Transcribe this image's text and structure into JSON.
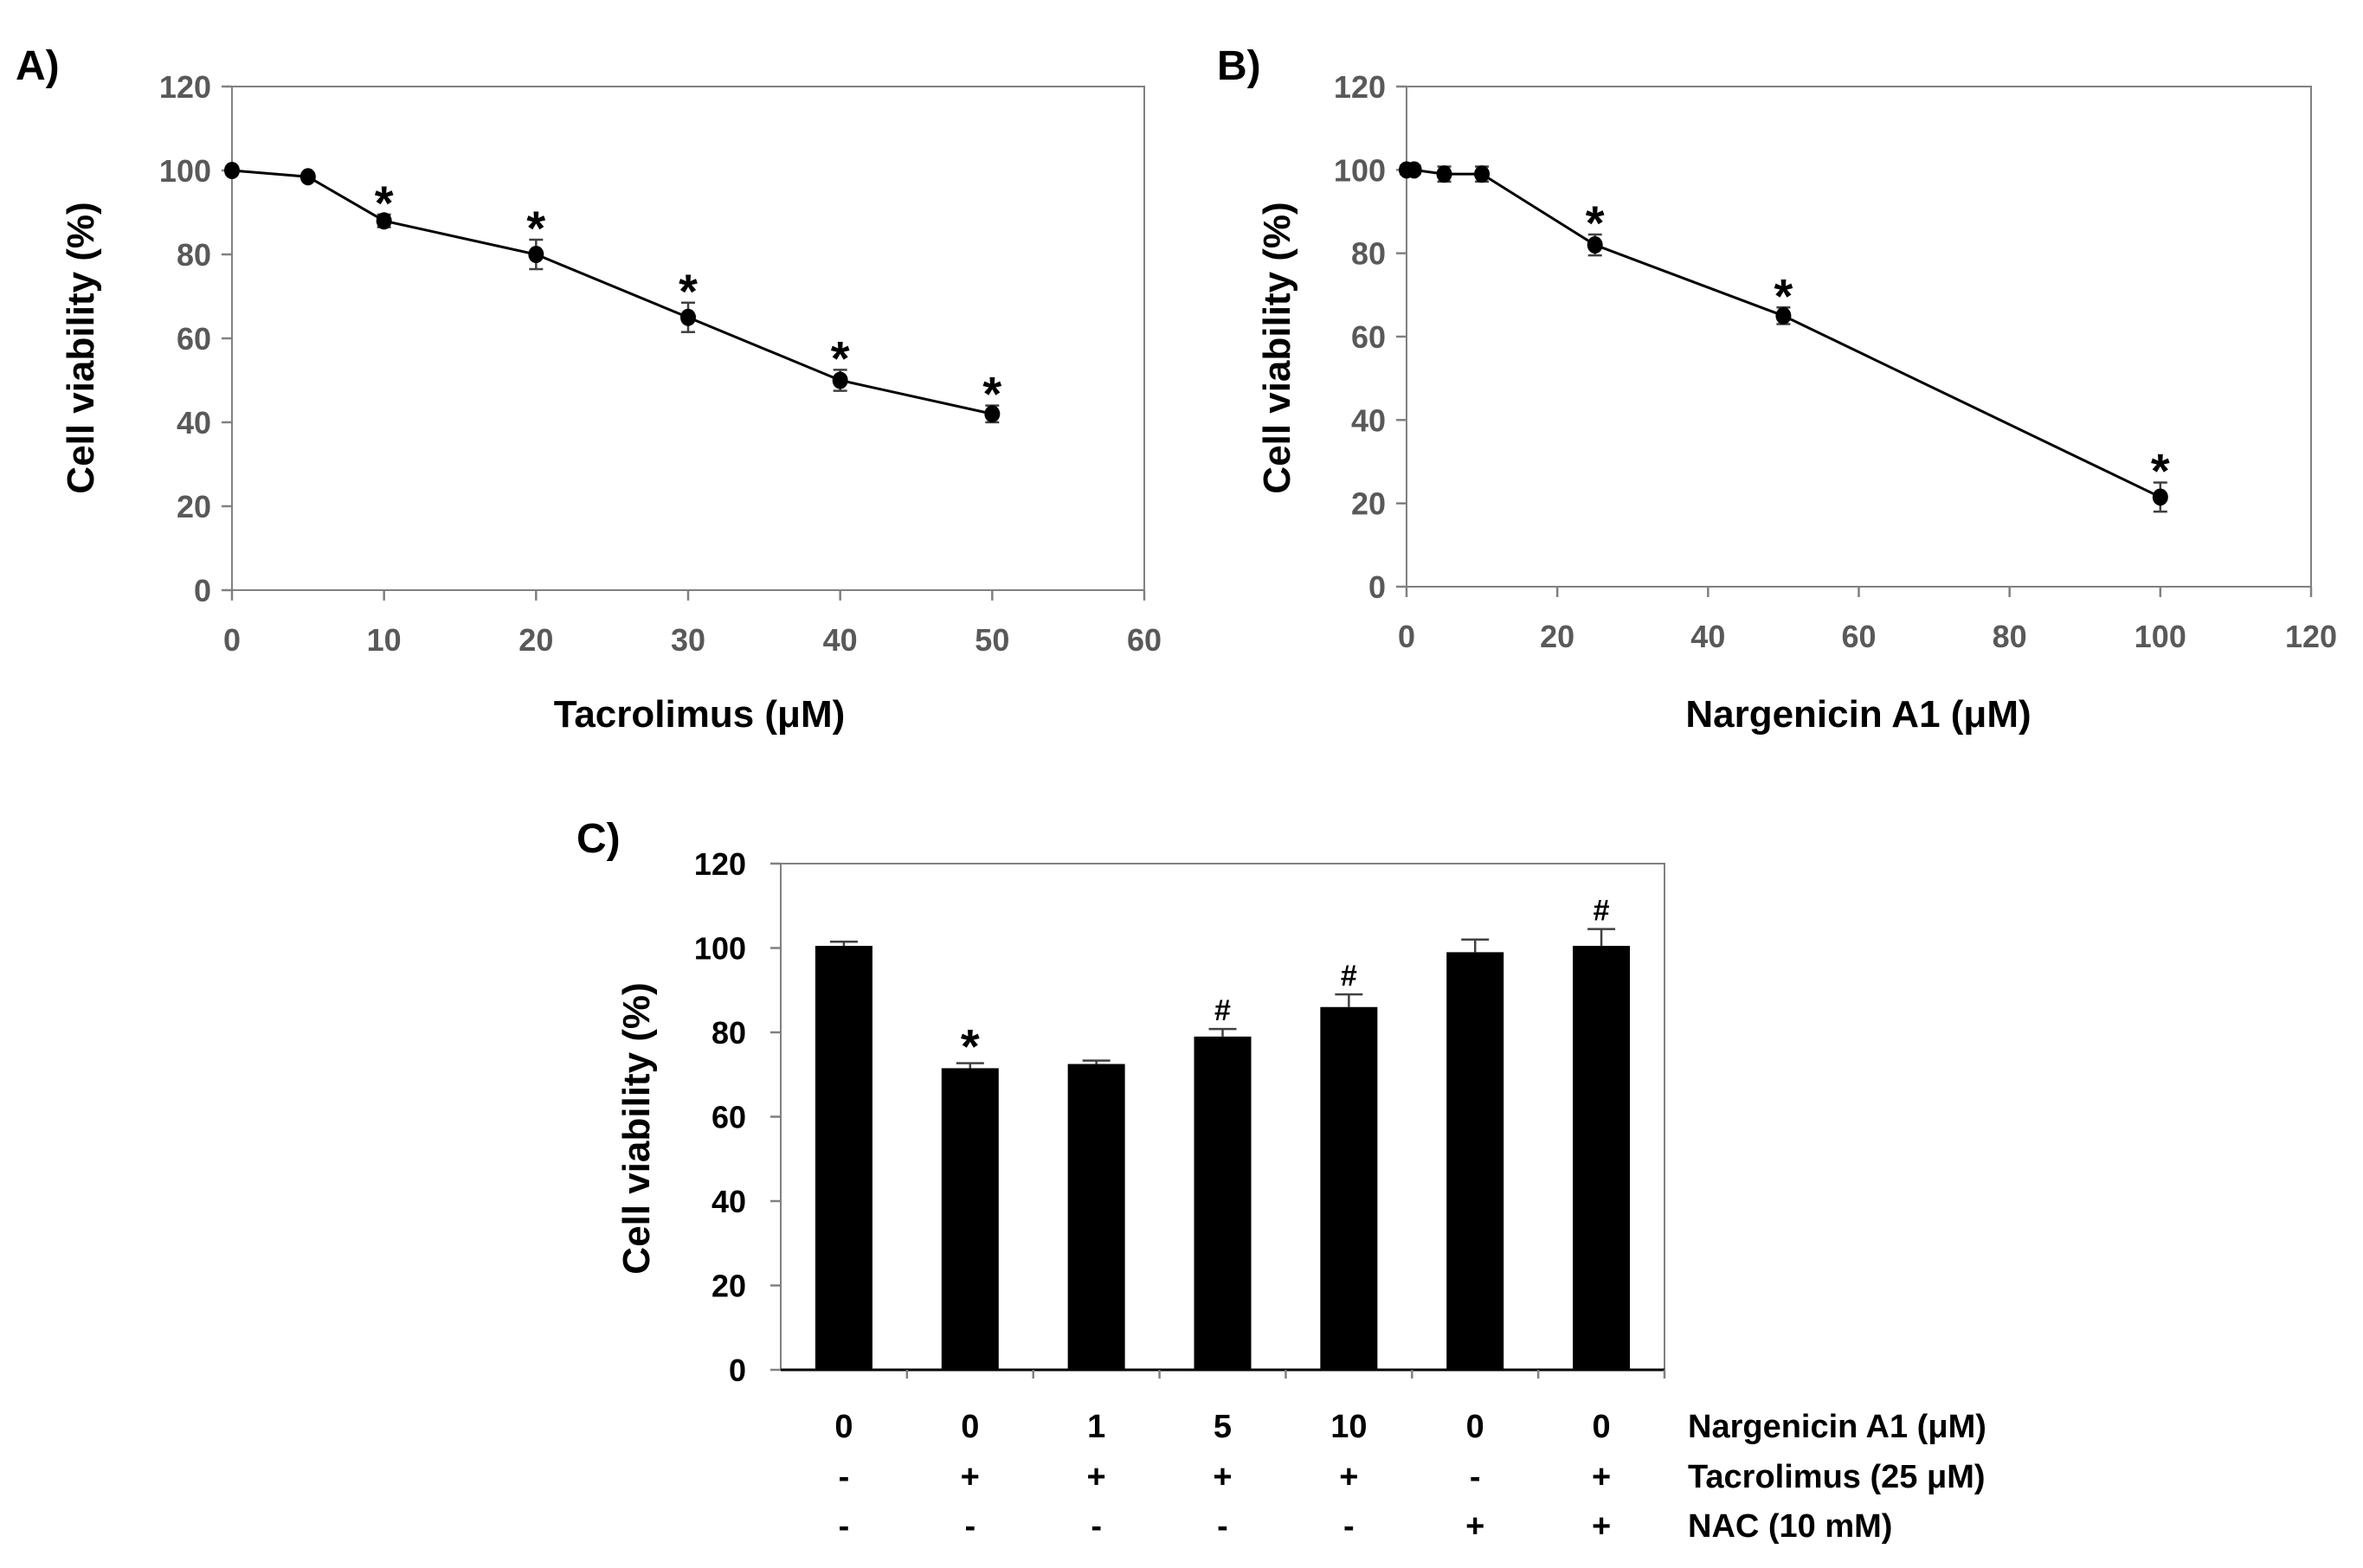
{
  "chart_data": [
    {
      "panel": "A)",
      "type": "line",
      "xlabel": "Tacrolimus (μM)",
      "ylabel": "Cell viability (%)",
      "xlim": [
        0,
        60
      ],
      "ylim": [
        0,
        120
      ],
      "xticks": [
        "0",
        "10",
        "20",
        "30",
        "40",
        "50",
        "60"
      ],
      "yticks": [
        "0",
        "20",
        "40",
        "60",
        "80",
        "100",
        "120"
      ],
      "series": [
        {
          "name": "Tacrolimus",
          "x": [
            0,
            5,
            10,
            20,
            30,
            40,
            50
          ],
          "values": [
            100,
            98.5,
            88,
            80,
            65,
            50,
            42
          ],
          "errors": [
            0.8,
            0.8,
            1.5,
            3.5,
            3.5,
            2.5,
            2
          ],
          "significance": [
            "",
            "",
            "*",
            "*",
            "*",
            "*",
            "*"
          ]
        }
      ]
    },
    {
      "panel": "B)",
      "type": "line",
      "xlabel": "Nargenicin A1 (μM)",
      "ylabel": "Cell viability (%)",
      "xlim": [
        0,
        120
      ],
      "ylim": [
        0,
        120
      ],
      "xticks": [
        "0",
        "20",
        "40",
        "60",
        "80",
        "100",
        "120"
      ],
      "yticks": [
        "0",
        "20",
        "40",
        "60",
        "80",
        "100",
        "120"
      ],
      "series": [
        {
          "name": "Nargenicin A1",
          "x": [
            0,
            1,
            5,
            10,
            25,
            50,
            100
          ],
          "values": [
            100,
            100,
            99,
            99,
            82,
            65,
            21.5
          ],
          "errors": [
            1,
            1,
            1.8,
            1.8,
            2.5,
            2,
            3.5
          ],
          "significance": [
            "",
            "",
            "",
            "",
            "*",
            "*",
            "*"
          ]
        }
      ]
    },
    {
      "panel": "C)",
      "type": "bar",
      "ylabel": "Cell viability (%)",
      "ylim": [
        0,
        120
      ],
      "yticks": [
        "0",
        "20",
        "40",
        "60",
        "80",
        "100",
        "120"
      ],
      "values": [
        100.5,
        71.5,
        72.5,
        79,
        86,
        99,
        100.5
      ],
      "errors": [
        1,
        1.2,
        0.8,
        1.8,
        3,
        3,
        4
      ],
      "significance": [
        "",
        "*",
        "",
        "#",
        "#",
        "",
        "#"
      ],
      "condition_rows": [
        {
          "label": "Nargenicin A1 (μM)",
          "values": [
            "0",
            "0",
            "1",
            "5",
            "10",
            "0",
            "0"
          ]
        },
        {
          "label": "Tacrolimus (25 μM)",
          "values": [
            "-",
            "+",
            "+",
            "+",
            "+",
            "-",
            "+"
          ]
        },
        {
          "label": "NAC (10 mM)",
          "values": [
            "-",
            "-",
            "-",
            "-",
            "-",
            "+",
            "+"
          ]
        }
      ]
    }
  ]
}
